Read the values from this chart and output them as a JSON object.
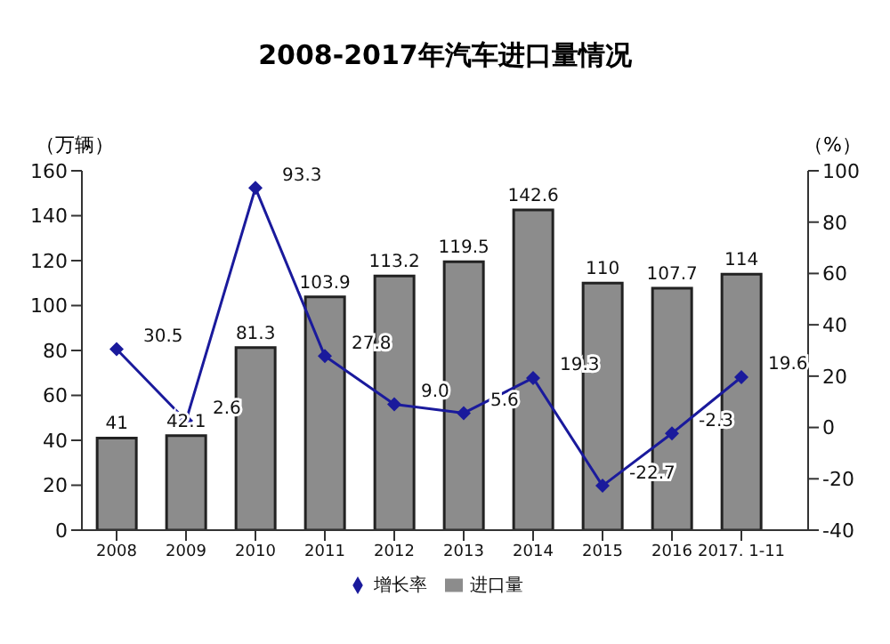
{
  "chart_data": {
    "type": "bar",
    "title": "2008-2017年汽车进口量情况",
    "ylabel": "（万辆）",
    "y2label": "（%）",
    "categories": [
      "2008",
      "2009",
      "2010",
      "2011",
      "2012",
      "2013",
      "2014",
      "2015",
      "2016",
      "2017. 1-11"
    ],
    "series": [
      {
        "name": "进口量",
        "color": "#8c8c8c",
        "values": [
          41,
          42.1,
          81.3,
          103.9,
          113.2,
          119.5,
          142.6,
          110,
          107.7,
          114
        ]
      },
      {
        "name": "增长率",
        "type": "line",
        "axis": "y2",
        "color": "#1a1a9c",
        "marker": "diamond",
        "values": [
          30.5,
          2.6,
          93.3,
          27.8,
          9.0,
          5.6,
          19.3,
          -22.7,
          -2.3,
          19.6
        ],
        "value_labels": [
          "30.5",
          "2.6",
          "93.3",
          "27.8",
          "9.0",
          "5.6",
          "19.3",
          "-22.7",
          "-2.3",
          "19.6"
        ]
      }
    ],
    "ylim": [
      0,
      160
    ],
    "yticks": [
      0,
      20,
      40,
      60,
      80,
      100,
      120,
      140,
      160
    ],
    "y2lim": [
      -40,
      100
    ],
    "y2ticks": [
      -40,
      -20,
      0,
      20,
      40,
      60,
      80,
      100
    ],
    "data_labels": true,
    "legend": "bottom"
  }
}
